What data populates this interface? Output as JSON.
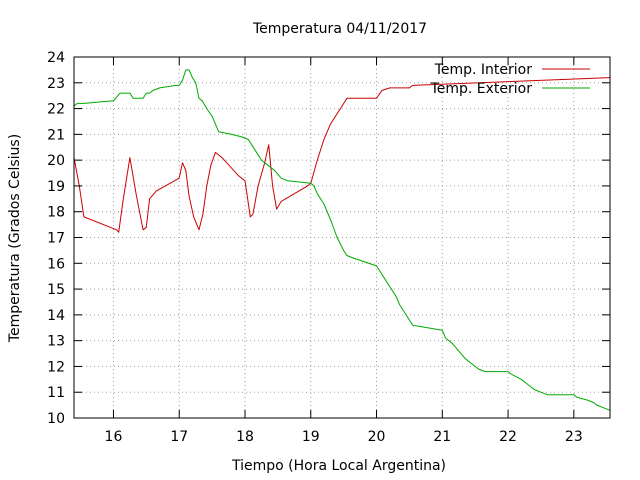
{
  "chart_data": {
    "type": "line",
    "title": "Temperatura 04/11/2017",
    "xlabel": "Tiempo (Hora Local Argentina)",
    "ylabel": "Temperatura (Grados Celsius)",
    "xlim": [
      15.4,
      23.55
    ],
    "ylim": [
      10,
      24
    ],
    "xticks": [
      16,
      17,
      18,
      19,
      20,
      21,
      22,
      23
    ],
    "xtick_labels": [
      "16",
      "17",
      "18",
      "19",
      "20",
      "21",
      "22",
      "23"
    ],
    "yticks": [
      10,
      11,
      12,
      13,
      14,
      15,
      16,
      17,
      18,
      19,
      20,
      21,
      22,
      23,
      24
    ],
    "ytick_labels": [
      "10",
      "11",
      "12",
      "13",
      "14",
      "15",
      "16",
      "17",
      "18",
      "19",
      "20",
      "21",
      "22",
      "23",
      "24"
    ],
    "grid": true,
    "legend_position": "top-right",
    "series": [
      {
        "name": "Temp. Interior",
        "color": "#cc0000",
        "x": [
          15.4,
          15.48,
          15.55,
          16.05,
          16.08,
          16.15,
          16.25,
          16.35,
          16.45,
          16.5,
          16.55,
          16.65,
          17.0,
          17.05,
          17.1,
          17.15,
          17.22,
          17.3,
          17.36,
          17.42,
          17.48,
          17.55,
          17.65,
          17.9,
          18.0,
          18.08,
          18.12,
          18.2,
          18.3,
          18.36,
          18.42,
          18.48,
          18.55,
          18.95,
          19.0,
          19.1,
          19.2,
          19.3,
          19.45,
          19.55,
          20.0,
          20.08,
          20.2,
          20.5,
          20.55,
          23.55
        ],
        "y": [
          20.1,
          19.0,
          17.8,
          17.3,
          17.2,
          18.5,
          20.1,
          18.6,
          17.3,
          17.4,
          18.5,
          18.8,
          19.3,
          19.9,
          19.6,
          18.6,
          17.8,
          17.3,
          17.9,
          19.0,
          19.8,
          20.3,
          20.1,
          19.4,
          19.2,
          17.8,
          17.9,
          19.0,
          19.9,
          20.6,
          19.0,
          18.1,
          18.4,
          19.0,
          19.1,
          20.0,
          20.8,
          21.4,
          22.0,
          22.4,
          22.4,
          22.7,
          22.8,
          22.8,
          22.9,
          23.2
        ]
      },
      {
        "name": "Temp. Exterior",
        "color": "#00aa00",
        "x": [
          15.4,
          15.45,
          15.55,
          16.0,
          16.1,
          16.2,
          16.25,
          16.3,
          16.4,
          16.45,
          16.5,
          16.55,
          16.6,
          16.7,
          16.95,
          17.0,
          17.05,
          17.1,
          17.15,
          17.2,
          17.25,
          17.3,
          17.35,
          17.42,
          17.5,
          17.55,
          17.6,
          17.8,
          17.95,
          18.05,
          18.15,
          18.25,
          18.35,
          18.45,
          18.55,
          18.65,
          19.0,
          19.05,
          19.1,
          19.15,
          19.2,
          19.3,
          19.4,
          19.5,
          19.55,
          19.65,
          20.0,
          20.1,
          20.2,
          20.3,
          20.35,
          20.45,
          20.55,
          21.0,
          21.05,
          21.15,
          21.25,
          21.35,
          21.45,
          21.55,
          21.65,
          22.0,
          22.05,
          22.2,
          22.3,
          22.4,
          22.5,
          22.6,
          23.0,
          23.05,
          23.2,
          23.3,
          23.35,
          23.45,
          23.55
        ],
        "y": [
          22.1,
          22.2,
          22.2,
          22.3,
          22.6,
          22.6,
          22.6,
          22.4,
          22.4,
          22.4,
          22.6,
          22.6,
          22.7,
          22.8,
          22.9,
          22.9,
          23.1,
          23.5,
          23.5,
          23.2,
          23.0,
          22.4,
          22.3,
          22.0,
          21.7,
          21.4,
          21.1,
          21.0,
          20.9,
          20.8,
          20.4,
          20.0,
          19.8,
          19.6,
          19.3,
          19.2,
          19.1,
          19.0,
          18.7,
          18.5,
          18.3,
          17.7,
          17.0,
          16.5,
          16.3,
          16.2,
          15.9,
          15.5,
          15.1,
          14.7,
          14.4,
          14.0,
          13.6,
          13.4,
          13.1,
          12.9,
          12.6,
          12.3,
          12.1,
          11.9,
          11.8,
          11.8,
          11.7,
          11.5,
          11.3,
          11.1,
          11.0,
          10.9,
          10.9,
          10.8,
          10.7,
          10.6,
          10.5,
          10.4,
          10.3
        ]
      }
    ]
  }
}
